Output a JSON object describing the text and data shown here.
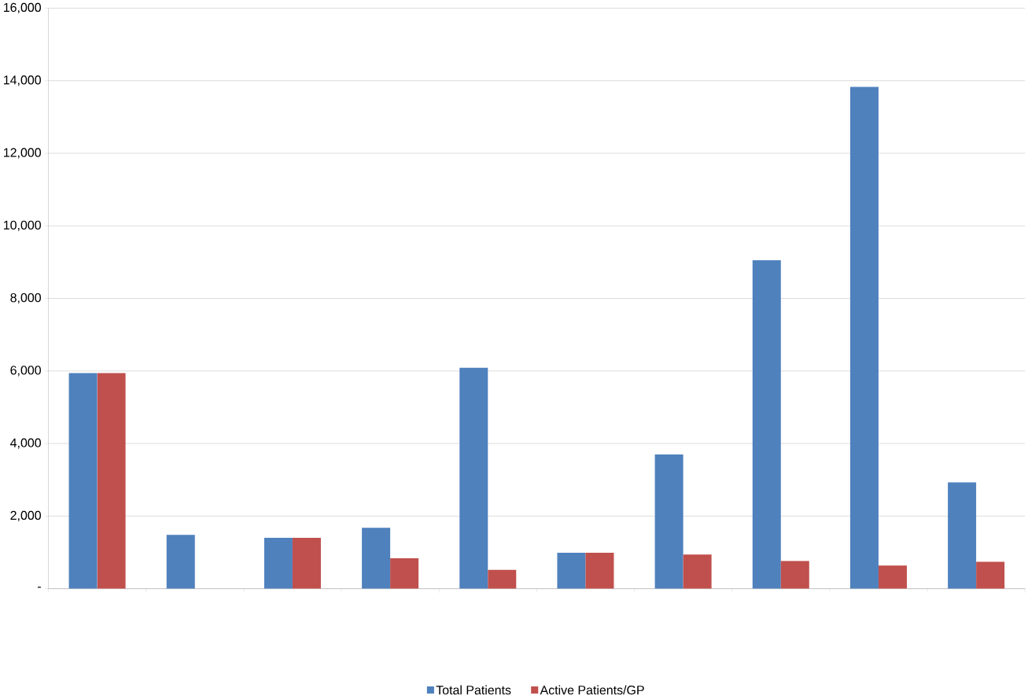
{
  "chart_data": {
    "type": "bar",
    "categories": [
      null,
      null,
      null,
      null,
      null,
      null,
      null,
      null,
      null,
      null
    ],
    "series": [
      {
        "name": "Total Patients",
        "color": "#4f81bd",
        "values": [
          5940,
          1480,
          1400,
          1680,
          6090,
          990,
          3700,
          9050,
          13830,
          2930
        ]
      },
      {
        "name": "Active Patients/GP",
        "color": "#c0504d",
        "values": [
          5940,
          null,
          1400,
          840,
          520,
          990,
          940,
          760,
          640,
          740
        ]
      }
    ],
    "ylim": [
      0,
      16000
    ],
    "yticks": [
      {
        "value": 0,
        "label": "-"
      },
      {
        "value": 2000,
        "label": "2,000"
      },
      {
        "value": 4000,
        "label": "4,000"
      },
      {
        "value": 6000,
        "label": "6,000"
      },
      {
        "value": 8000,
        "label": "8,000"
      },
      {
        "value": 10000,
        "label": "10,000"
      },
      {
        "value": 12000,
        "label": "12,000"
      },
      {
        "value": 14000,
        "label": "14,000"
      },
      {
        "value": 16000,
        "label": "16,000"
      }
    ],
    "grid": "y",
    "legend": "bottom"
  }
}
